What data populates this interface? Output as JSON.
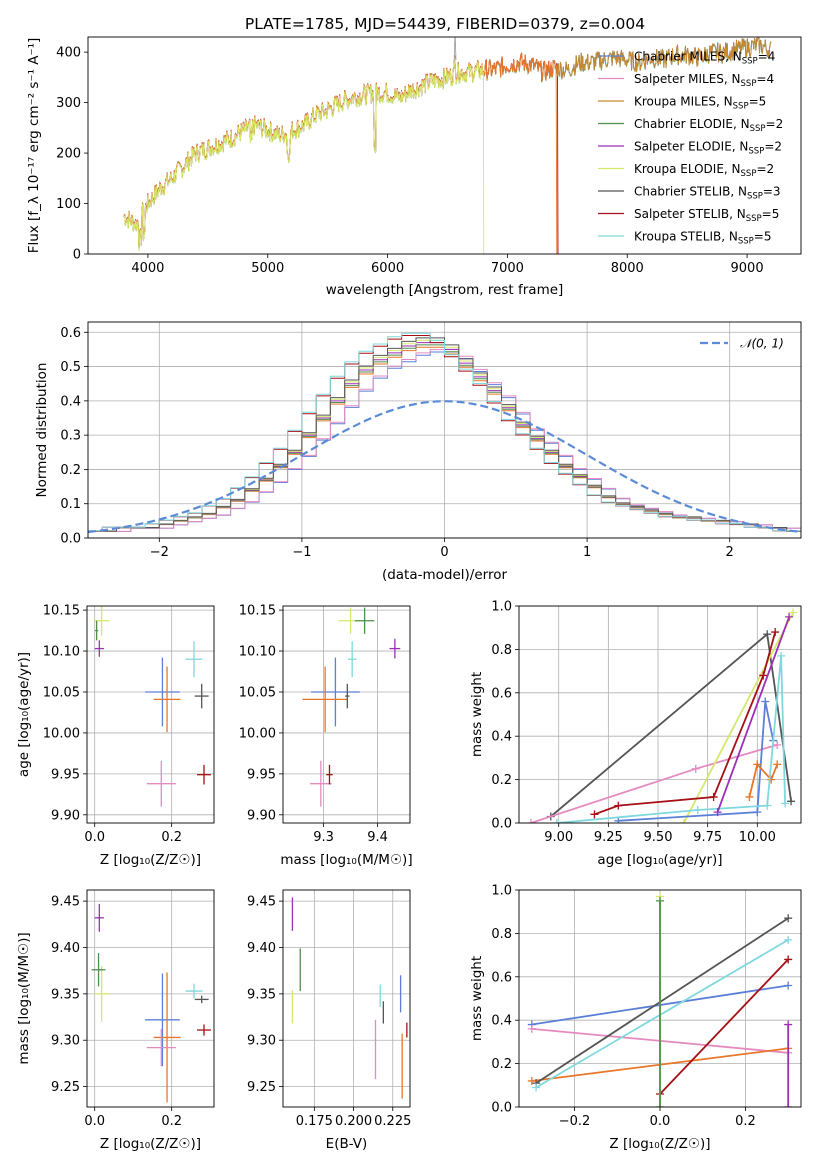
{
  "title": "PLATE=1785, MJD=54439, FIBERID=0379, z=0.004",
  "colors": {
    "Chabrier MILES": "#5b7fd8",
    "Salpeter MILES": "#e58ac0",
    "Kroupa MILES": "#c98a2c",
    "Chabrier ELODIE": "#4e8f4e",
    "Salpeter ELODIE": "#9b2fb8",
    "Kroupa ELODIE": "#d6e76a",
    "Chabrier STELIB": "#555555",
    "Salpeter STELIB": "#a50f15",
    "Kroupa STELIB": "#7fd8de",
    "orange": "#e8762b",
    "gaussian": "#5b8bd6"
  },
  "chart_data": [
    {
      "type": "line",
      "panel": "spectrum",
      "xlabel": "wavelength [Angstrom, rest frame]",
      "ylabel": "Flux [f_λ 10⁻¹⁷ erg cm⁻² s⁻¹ A⁻¹]",
      "xlim": [
        3500,
        9450
      ],
      "ylim": [
        0,
        430
      ],
      "xticks": [
        4000,
        5000,
        6000,
        7000,
        8000,
        9000
      ],
      "yticks": [
        0,
        100,
        200,
        300,
        400
      ],
      "legend_position": "top-right",
      "series": [
        {
          "name": "Chabrier MILES, N_SSP=4",
          "leg_main": "Chabrier MILES, N",
          "leg_sub": "SSP",
          "leg_tail": "=4"
        },
        {
          "name": "Salpeter MILES, N_SSP=4",
          "leg_main": "Salpeter MILES, N",
          "leg_sub": "SSP",
          "leg_tail": "=4"
        },
        {
          "name": "Kroupa MILES, N_SSP=5",
          "leg_main": "Kroupa MILES, N",
          "leg_sub": "SSP",
          "leg_tail": "=5"
        },
        {
          "name": "Chabrier ELODIE, N_SSP=2",
          "leg_main": "Chabrier ELODIE, N",
          "leg_sub": "SSP",
          "leg_tail": "=2"
        },
        {
          "name": "Salpeter ELODIE, N_SSP=2",
          "leg_main": "Salpeter ELODIE, N",
          "leg_sub": "SSP",
          "leg_tail": "=2"
        },
        {
          "name": "Kroupa ELODIE, N_SSP=2",
          "leg_main": "Kroupa ELODIE, N",
          "leg_sub": "SSP",
          "leg_tail": "=2"
        },
        {
          "name": "Chabrier STELIB, N_SSP=3",
          "leg_main": "Chabrier STELIB, N",
          "leg_sub": "SSP",
          "leg_tail": "=3"
        },
        {
          "name": "Salpeter STELIB, N_SSP=5",
          "leg_main": "Salpeter STELIB, N",
          "leg_sub": "SSP",
          "leg_tail": "=5"
        },
        {
          "name": "Kroupa STELIB, N_SSP=5",
          "leg_main": "Kroupa STELIB, N",
          "leg_sub": "SSP",
          "leg_tail": "=5"
        }
      ],
      "envelope_x": [
        3800,
        3900,
        4000,
        4100,
        4200,
        4300,
        4400,
        4500,
        4600,
        4700,
        4800,
        4900,
        5000,
        5100,
        5200,
        5300,
        5400,
        5500,
        5600,
        5700,
        5800,
        5900,
        6000,
        6100,
        6200,
        6300,
        6400,
        6500,
        6600,
        6700,
        6800,
        6900,
        7000,
        7100,
        7200,
        7300,
        7400,
        7500,
        7600,
        7700,
        7800,
        7900,
        8000,
        8100,
        8200,
        8300,
        8400,
        8500,
        8600,
        8700,
        8800,
        8900,
        9000,
        9100,
        9200
      ],
      "envelope_y": [
        75,
        60,
        100,
        130,
        150,
        175,
        200,
        210,
        220,
        230,
        245,
        255,
        245,
        235,
        245,
        255,
        275,
        285,
        300,
        310,
        315,
        320,
        320,
        310,
        325,
        335,
        345,
        350,
        360,
        360,
        365,
        365,
        375,
        380,
        375,
        360,
        370,
        365,
        380,
        380,
        385,
        390,
        385,
        380,
        390,
        385,
        395,
        395,
        390,
        400,
        400,
        405,
        410,
        415,
        405
      ],
      "drops": [
        {
          "series": "Kroupa ELODIE, N_SSP=2",
          "at": 6800
        },
        {
          "series": "Salpeter STELIB, N_SSP=5",
          "at": 7420
        },
        {
          "series": "orange",
          "at": 7410
        }
      ]
    },
    {
      "type": "area",
      "panel": "residual-histogram",
      "xlabel": "(data-model)/error",
      "ylabel": "Normed distribution",
      "xlim": [
        -2.5,
        2.5
      ],
      "ylim": [
        0,
        0.63
      ],
      "xticks": [
        -2,
        -1,
        0,
        1,
        2
      ],
      "yticks": [
        0.0,
        0.1,
        0.2,
        0.3,
        0.4,
        0.5,
        0.6
      ],
      "grid": true,
      "legend_position": "top-right",
      "legend_label": "𝒩(0, 1)",
      "gaussian": {
        "mu": 0,
        "sigma": 1
      },
      "bin_edges": [
        -2.5,
        -2.4,
        -2.3,
        -2.2,
        -2.1,
        -2.0,
        -1.9,
        -1.8,
        -1.7,
        -1.6,
        -1.5,
        -1.4,
        -1.3,
        -1.2,
        -1.1,
        -1.0,
        -0.9,
        -0.8,
        -0.7,
        -0.6,
        -0.5,
        -0.4,
        -0.3,
        -0.2,
        -0.1,
        0.0,
        0.1,
        0.2,
        0.3,
        0.4,
        0.5,
        0.6,
        0.7,
        0.8,
        0.9,
        1.0,
        1.1,
        1.2,
        1.3,
        1.4,
        1.5,
        1.6,
        1.7,
        1.8,
        1.9,
        2.0,
        2.1,
        2.2,
        2.3,
        2.4,
        2.5
      ],
      "hist_base": [
        0.02,
        0.02,
        0.03,
        0.03,
        0.03,
        0.04,
        0.05,
        0.06,
        0.07,
        0.09,
        0.11,
        0.14,
        0.17,
        0.21,
        0.25,
        0.3,
        0.35,
        0.4,
        0.45,
        0.49,
        0.52,
        0.54,
        0.56,
        0.57,
        0.57,
        0.55,
        0.51,
        0.47,
        0.43,
        0.38,
        0.33,
        0.29,
        0.25,
        0.21,
        0.18,
        0.15,
        0.12,
        0.1,
        0.09,
        0.08,
        0.07,
        0.06,
        0.06,
        0.05,
        0.05,
        0.04,
        0.04,
        0.03,
        0.03,
        0.02
      ]
    },
    {
      "type": "scatter",
      "panel": "age-vs-Z",
      "xlabel": "Z [log₁₀(Z/Z☉)]",
      "ylabel": "age  [log₁₀(age/yr)]",
      "xlim": [
        -0.02,
        0.31
      ],
      "ylim": [
        9.89,
        10.155
      ],
      "xticks": [
        0.0,
        0.2
      ],
      "yticks": [
        9.9,
        9.95,
        10.0,
        10.05,
        10.1,
        10.15
      ],
      "points": [
        {
          "series": "Chabrier MILES",
          "x": 0.176,
          "y": 10.05,
          "xerr": 0.045,
          "yerr": 0.042
        },
        {
          "series": "orange",
          "x": 0.188,
          "y": 10.041,
          "xerr": 0.035,
          "yerr": 0.04
        },
        {
          "series": "Salpeter MILES",
          "x": 0.173,
          "y": 9.938,
          "xerr": 0.038,
          "yerr": 0.028
        },
        {
          "series": "Kroupa ELODIE",
          "x": 0.018,
          "y": 10.137,
          "xerr": 0.02,
          "yerr": 0.018
        },
        {
          "series": "Salpeter ELODIE",
          "x": 0.012,
          "y": 10.103,
          "xerr": 0.012,
          "yerr": 0.01
        },
        {
          "series": "Kroupa STELIB",
          "x": 0.258,
          "y": 10.09,
          "xerr": 0.022,
          "yerr": 0.022
        },
        {
          "series": "Chabrier STELIB",
          "x": 0.278,
          "y": 10.045,
          "xerr": 0.018,
          "yerr": 0.015
        },
        {
          "series": "Salpeter STELIB",
          "x": 0.284,
          "y": 9.949,
          "xerr": 0.018,
          "yerr": 0.012
        },
        {
          "series": "Chabrier ELODIE",
          "x": 0.005,
          "y": 10.125,
          "xerr": 0.004,
          "yerr": 0.012
        }
      ]
    },
    {
      "type": "scatter",
      "panel": "age-vs-mass",
      "xlabel": "mass [log₁₀(M/M☉)]",
      "ylabel": "",
      "xlim": [
        9.225,
        9.46
      ],
      "ylim": [
        9.89,
        10.155
      ],
      "xticks": [
        9.3,
        9.4
      ],
      "yticks": [
        9.9,
        9.95,
        10.0,
        10.05,
        10.1,
        10.15
      ],
      "points": [
        {
          "series": "Chabrier MILES",
          "x": 9.322,
          "y": 10.05,
          "xerr": 0.045,
          "yerr": 0.042
        },
        {
          "series": "orange",
          "x": 9.303,
          "y": 10.041,
          "xerr": 0.042,
          "yerr": 0.04
        },
        {
          "series": "Salpeter MILES",
          "x": 9.295,
          "y": 9.938,
          "xerr": 0.02,
          "yerr": 0.028
        },
        {
          "series": "Kroupa ELODIE",
          "x": 9.35,
          "y": 10.137,
          "xerr": 0.022,
          "yerr": 0.016
        },
        {
          "series": "Salpeter ELODIE",
          "x": 9.432,
          "y": 10.103,
          "xerr": 0.01,
          "yerr": 0.012
        },
        {
          "series": "Kroupa STELIB",
          "x": 9.353,
          "y": 10.09,
          "xerr": 0.008,
          "yerr": 0.022
        },
        {
          "series": "Chabrier STELIB",
          "x": 9.344,
          "y": 10.045,
          "xerr": 0.004,
          "yerr": 0.015
        },
        {
          "series": "Salpeter STELIB",
          "x": 9.311,
          "y": 9.949,
          "xerr": 0.006,
          "yerr": 0.012
        },
        {
          "series": "Chabrier ELODIE",
          "x": 9.376,
          "y": 10.137,
          "xerr": 0.018,
          "yerr": 0.016
        }
      ]
    },
    {
      "type": "line",
      "panel": "mass-weight-vs-age",
      "xlabel": "age  [log₁₀(age/yr)]",
      "ylabel": "mass weight",
      "xlim": [
        8.8,
        10.22
      ],
      "ylim": [
        0,
        1.0
      ],
      "xticks": [
        9.0,
        9.25,
        9.5,
        9.75,
        10.0
      ],
      "yticks": [
        0.0,
        0.2,
        0.4,
        0.6,
        0.8,
        1.0
      ],
      "grid": true,
      "series": [
        {
          "name": "Chabrier STELIB",
          "x": [
            8.96,
            10.05,
            10.17
          ],
          "y": [
            0.03,
            0.87,
            0.1
          ]
        },
        {
          "name": "Salpeter MILES",
          "x": [
            8.86,
            9.69,
            10.1
          ],
          "y": [
            0.0,
            0.25,
            0.36
          ]
        },
        {
          "name": "Kroupa ELODIE",
          "x": [
            9.63,
            10.18
          ],
          "y": [
            0.0,
            0.97
          ]
        },
        {
          "name": "Salpeter STELIB",
          "x": [
            9.18,
            9.3,
            9.78,
            10.03,
            10.09
          ],
          "y": [
            0.04,
            0.08,
            0.12,
            0.68,
            0.88
          ]
        },
        {
          "name": "Chabrier MILES",
          "x": [
            9.3,
            10.0,
            10.04,
            10.08
          ],
          "y": [
            0.01,
            0.05,
            0.56,
            0.38
          ]
        },
        {
          "name": "orange",
          "x": [
            9.96,
            10.0,
            10.07,
            10.1
          ],
          "y": [
            0.12,
            0.27,
            0.2,
            0.27
          ]
        },
        {
          "name": "Kroupa STELIB",
          "x": [
            8.99,
            9.7,
            10.05,
            10.12,
            10.14
          ],
          "y": [
            0.0,
            0.06,
            0.08,
            0.77,
            0.09
          ]
        },
        {
          "name": "Salpeter ELODIE",
          "x": [
            9.8,
            10.16
          ],
          "y": [
            0.05,
            0.95
          ]
        }
      ]
    },
    {
      "type": "scatter",
      "panel": "mass-vs-Z",
      "xlabel": "Z [log₁₀(Z/Z☉)]",
      "ylabel": "mass [log₁₀(M/M☉)]",
      "xlim": [
        -0.02,
        0.31
      ],
      "ylim": [
        9.228,
        9.462
      ],
      "xticks": [
        0.0,
        0.2
      ],
      "yticks": [
        9.25,
        9.3,
        9.35,
        9.4,
        9.45
      ],
      "points": [
        {
          "series": "Chabrier MILES",
          "x": 0.176,
          "y": 9.322,
          "xerr": 0.045,
          "yerr": 0.05
        },
        {
          "series": "orange",
          "x": 0.188,
          "y": 9.303,
          "xerr": 0.035,
          "yerr": 0.07
        },
        {
          "series": "Salpeter MILES",
          "x": 0.173,
          "y": 9.292,
          "xerr": 0.038,
          "yerr": 0.02
        },
        {
          "series": "Kroupa ELODIE",
          "x": 0.018,
          "y": 9.35,
          "xerr": 0.02,
          "yerr": 0.03
        },
        {
          "series": "Chabrier ELODIE",
          "x": 0.01,
          "y": 9.376,
          "xerr": 0.018,
          "yerr": 0.018
        },
        {
          "series": "Salpeter ELODIE",
          "x": 0.012,
          "y": 9.432,
          "xerr": 0.012,
          "yerr": 0.015
        },
        {
          "series": "Kroupa STELIB",
          "x": 0.258,
          "y": 9.353,
          "xerr": 0.022,
          "yerr": 0.008
        },
        {
          "series": "Chabrier STELIB",
          "x": 0.278,
          "y": 9.344,
          "xerr": 0.018,
          "yerr": 0.004
        },
        {
          "series": "Salpeter STELIB",
          "x": 0.284,
          "y": 9.311,
          "xerr": 0.018,
          "yerr": 0.006
        }
      ]
    },
    {
      "type": "scatter",
      "panel": "mass-vs-EBV",
      "xlabel": "E(B-V)",
      "ylabel": "",
      "xlim": [
        0.155,
        0.236
      ],
      "ylim": [
        9.228,
        9.462
      ],
      "xticks": [
        0.175,
        0.2,
        0.225
      ],
      "xticklabels": [
        "0.175",
        "0.200",
        "0.225"
      ],
      "yticks": [
        9.25,
        9.3,
        9.35,
        9.4,
        9.45
      ],
      "points": [
        {
          "series": "Salpeter ELODIE",
          "x": 0.161,
          "y": 9.436,
          "xerr": 0,
          "yerr": 0.018
        },
        {
          "series": "Kroupa ELODIE",
          "x": 0.161,
          "y": 9.336,
          "xerr": 0,
          "yerr": 0.018
        },
        {
          "series": "Chabrier ELODIE",
          "x": 0.166,
          "y": 9.376,
          "xerr": 0,
          "yerr": 0.023
        },
        {
          "series": "Salpeter MILES",
          "x": 0.214,
          "y": 9.29,
          "xerr": 0,
          "yerr": 0.032
        },
        {
          "series": "Kroupa STELIB",
          "x": 0.217,
          "y": 9.348,
          "xerr": 0,
          "yerr": 0.012
        },
        {
          "series": "Chabrier STELIB",
          "x": 0.219,
          "y": 9.33,
          "xerr": 0,
          "yerr": 0.012
        },
        {
          "series": "Chabrier MILES",
          "x": 0.23,
          "y": 9.35,
          "xerr": 0,
          "yerr": 0.02
        },
        {
          "series": "orange",
          "x": 0.231,
          "y": 9.272,
          "xerr": 0,
          "yerr": 0.035
        },
        {
          "series": "Salpeter STELIB",
          "x": 0.234,
          "y": 9.311,
          "xerr": 0,
          "yerr": 0.008
        }
      ]
    },
    {
      "type": "line",
      "panel": "mass-weight-vs-Z",
      "xlabel": "Z [log₁₀(Z/Z☉)]",
      "ylabel": "mass weight",
      "xlim": [
        -0.33,
        0.33
      ],
      "ylim": [
        0,
        1.0
      ],
      "xticks": [
        -0.2,
        0.0,
        0.2
      ],
      "yticks": [
        0.0,
        0.2,
        0.4,
        0.6,
        0.8,
        1.0
      ],
      "grid": true,
      "series": [
        {
          "name": "Chabrier MILES",
          "x": [
            -0.3,
            0.3
          ],
          "y": [
            0.38,
            0.56
          ]
        },
        {
          "name": "Salpeter MILES",
          "x": [
            -0.3,
            0.3
          ],
          "y": [
            0.36,
            0.25
          ]
        },
        {
          "name": "orange",
          "x": [
            -0.3,
            0.3
          ],
          "y": [
            0.12,
            0.27
          ]
        },
        {
          "name": "Chabrier STELIB",
          "x": [
            -0.29,
            0.3
          ],
          "y": [
            0.11,
            0.87
          ]
        },
        {
          "name": "Kroupa STELIB",
          "x": [
            -0.29,
            0.3
          ],
          "y": [
            0.09,
            0.77
          ]
        },
        {
          "name": "Salpeter STELIB",
          "x": [
            0.0,
            0.3
          ],
          "y": [
            0.06,
            0.68
          ]
        },
        {
          "name": "Kroupa ELODIE",
          "x": [
            0.0,
            0.0
          ],
          "y": [
            0.0,
            0.97
          ]
        },
        {
          "name": "Chabrier ELODIE",
          "x": [
            0.0,
            0.0
          ],
          "y": [
            0.0,
            0.95
          ]
        },
        {
          "name": "Salpeter ELODIE",
          "x": [
            0.3,
            0.3
          ],
          "y": [
            0.0,
            0.38
          ]
        }
      ]
    }
  ]
}
